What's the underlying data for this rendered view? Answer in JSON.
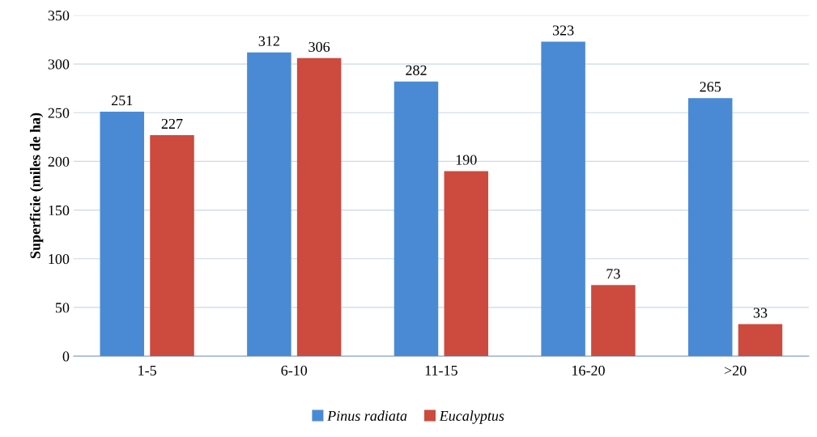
{
  "chart_data": {
    "type": "bar",
    "ylabel": "Superficie (miles de ha)",
    "categories": [
      "1-5",
      "6-10",
      "11-15",
      "16-20",
      ">20"
    ],
    "series": [
      {
        "name": "Pinus radiata",
        "color": "#4a8ad4",
        "values": [
          251,
          312,
          282,
          323,
          265
        ]
      },
      {
        "name": "Eucalyptus",
        "color": "#cc4a3e",
        "values": [
          227,
          306,
          190,
          73,
          33
        ]
      }
    ],
    "ylim": [
      0,
      350
    ],
    "yticks": [
      0,
      50,
      100,
      150,
      200,
      250,
      300,
      350
    ],
    "grid": "y",
    "legend": "bottom",
    "data_labels": true
  }
}
